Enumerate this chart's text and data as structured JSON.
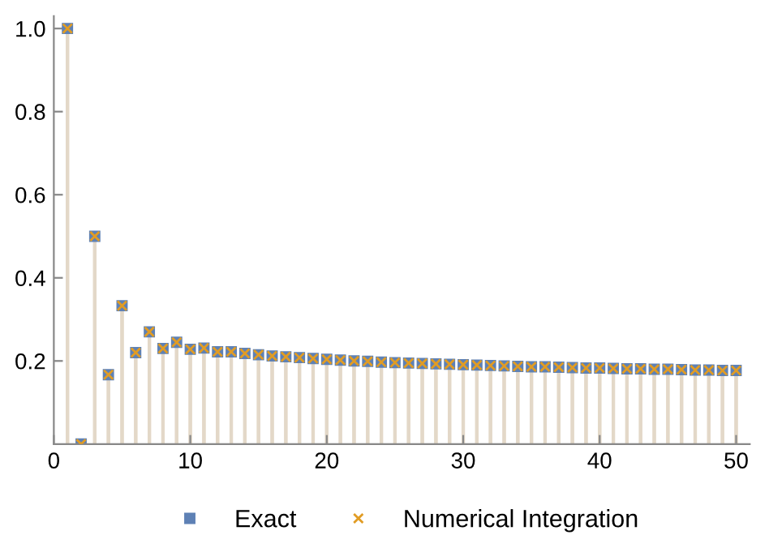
{
  "chart_data": {
    "type": "lollipop",
    "x": [
      1,
      2,
      3,
      4,
      5,
      6,
      7,
      8,
      9,
      10,
      11,
      12,
      13,
      14,
      15,
      16,
      17,
      18,
      19,
      20,
      21,
      22,
      23,
      24,
      25,
      26,
      27,
      28,
      29,
      30,
      31,
      32,
      33,
      34,
      35,
      36,
      37,
      38,
      39,
      40,
      41,
      42,
      43,
      44,
      45,
      46,
      47,
      48,
      49,
      50
    ],
    "series": [
      {
        "name": "Exact",
        "color": "#5e81b5",
        "marker": "square",
        "values": [
          1.0,
          0.0,
          0.5,
          0.167,
          0.333,
          0.22,
          0.27,
          0.23,
          0.245,
          0.228,
          0.231,
          0.222,
          0.222,
          0.218,
          0.215,
          0.212,
          0.21,
          0.208,
          0.206,
          0.204,
          0.202,
          0.2,
          0.199,
          0.197,
          0.196,
          0.195,
          0.194,
          0.193,
          0.192,
          0.191,
          0.19,
          0.189,
          0.188,
          0.187,
          0.186,
          0.186,
          0.185,
          0.184,
          0.183,
          0.183,
          0.182,
          0.181,
          0.181,
          0.18,
          0.18,
          0.179,
          0.178,
          0.178,
          0.177,
          0.177
        ]
      },
      {
        "name": "Numerical Integration",
        "color": "#e19c24",
        "marker": "cross",
        "values": [
          1.0,
          0.0,
          0.5,
          0.167,
          0.333,
          0.22,
          0.27,
          0.23,
          0.245,
          0.228,
          0.231,
          0.222,
          0.222,
          0.218,
          0.215,
          0.212,
          0.21,
          0.208,
          0.206,
          0.204,
          0.202,
          0.2,
          0.199,
          0.197,
          0.196,
          0.195,
          0.194,
          0.193,
          0.192,
          0.191,
          0.19,
          0.189,
          0.188,
          0.187,
          0.186,
          0.186,
          0.185,
          0.184,
          0.183,
          0.183,
          0.182,
          0.181,
          0.181,
          0.18,
          0.18,
          0.179,
          0.178,
          0.178,
          0.177,
          0.177
        ]
      }
    ],
    "xlim": [
      0,
      51
    ],
    "ylim": [
      0,
      1.03
    ],
    "xticks": [
      0,
      10,
      20,
      30,
      40,
      50
    ],
    "yticks": [
      0.2,
      0.4,
      0.6,
      0.8,
      {
        "value": 1.0,
        "label": "1.0"
      }
    ],
    "grid": false,
    "legend": "bottom"
  }
}
